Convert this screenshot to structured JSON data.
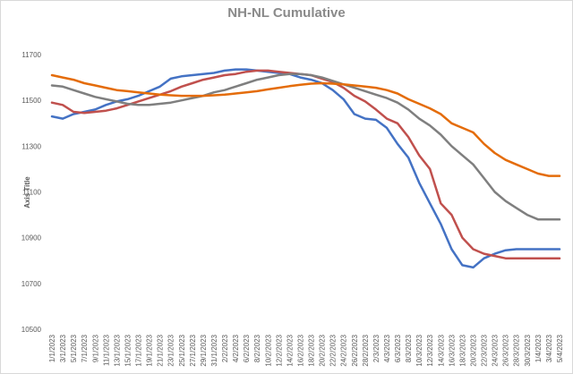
{
  "chart_data": {
    "type": "line",
    "title": "NH-NL Cumulative",
    "xlabel": "",
    "ylabel": "Axis Title",
    "ylim": [
      10500,
      11700
    ],
    "yticks": [
      10500,
      10700,
      10900,
      11100,
      11300,
      11500,
      11700
    ],
    "grid": false,
    "legend": "none",
    "x": [
      "1/1/2023",
      "3/1/2023",
      "5/1/2023",
      "7/1/2023",
      "9/1/2023",
      "11/1/2023",
      "13/1/2023",
      "15/1/2023",
      "17/1/2023",
      "19/1/2023",
      "21/1/2023",
      "23/1/2023",
      "25/1/2023",
      "27/1/2023",
      "29/1/2023",
      "31/1/2023",
      "2/2/2023",
      "4/2/2023",
      "6/2/2023",
      "8/2/2023",
      "10/2/2023",
      "12/2/2023",
      "14/2/2023",
      "16/2/2023",
      "18/2/2023",
      "20/2/2023",
      "22/2/2023",
      "24/2/2023",
      "26/2/2023",
      "28/2/2023",
      "2/3/2023",
      "4/3/2023",
      "6/3/2023",
      "8/3/2023",
      "10/3/2023",
      "12/3/2023",
      "14/3/2023",
      "16/3/2023",
      "18/3/2023",
      "20/3/2023",
      "22/3/2023",
      "24/3/2023",
      "26/3/2023",
      "28/3/2023",
      "30/3/2023",
      "1/4/2023",
      "3/4/2023",
      "5/4/2023"
    ],
    "series": [
      {
        "color": "#4472c4",
        "values": [
          11430,
          11420,
          11440,
          11450,
          11460,
          11480,
          11495,
          11505,
          11520,
          11540,
          11560,
          11595,
          11605,
          11610,
          11615,
          11620,
          11630,
          11635,
          11635,
          11630,
          11625,
          11620,
          11615,
          11600,
          11590,
          11575,
          11545,
          11505,
          11440,
          11420,
          11415,
          11380,
          11310,
          11250,
          11140,
          11050,
          10960,
          10850,
          10780,
          10770,
          10810,
          10830,
          10845,
          10850,
          10850,
          10850,
          10850,
          10850
        ]
      },
      {
        "color": "#c0504d",
        "values": [
          11490,
          11480,
          11450,
          11445,
          11450,
          11455,
          11465,
          11480,
          11495,
          11510,
          11525,
          11540,
          11560,
          11575,
          11590,
          11600,
          11610,
          11615,
          11625,
          11630,
          11630,
          11625,
          11620,
          11615,
          11610,
          11595,
          11580,
          11555,
          11520,
          11495,
          11460,
          11420,
          11400,
          11340,
          11260,
          11200,
          11050,
          11000,
          10900,
          10850,
          10830,
          10820,
          10810,
          10810,
          10810,
          10810,
          10810,
          10810
        ]
      },
      {
        "color": "#7f7f7f",
        "values": [
          11565,
          11560,
          11545,
          11530,
          11515,
          11505,
          11495,
          11485,
          11480,
          11480,
          11485,
          11490,
          11500,
          11510,
          11520,
          11535,
          11545,
          11560,
          11575,
          11590,
          11600,
          11610,
          11615,
          11615,
          11610,
          11600,
          11585,
          11570,
          11555,
          11540,
          11525,
          11510,
          11490,
          11460,
          11420,
          11390,
          11350,
          11300,
          11260,
          11220,
          11160,
          11100,
          11060,
          11030,
          11000,
          10980,
          10980,
          10980
        ]
      },
      {
        "color": "#e46c0a",
        "values": [
          11610,
          11600,
          11590,
          11575,
          11565,
          11555,
          11545,
          11540,
          11535,
          11530,
          11525,
          11522,
          11520,
          11520,
          11520,
          11522,
          11525,
          11530,
          11535,
          11540,
          11548,
          11555,
          11562,
          11568,
          11573,
          11575,
          11573,
          11570,
          11565,
          11560,
          11555,
          11545,
          11530,
          11505,
          11485,
          11465,
          11440,
          11400,
          11380,
          11360,
          11310,
          11270,
          11240,
          11220,
          11200,
          11180,
          11170,
          11170
        ]
      }
    ]
  }
}
